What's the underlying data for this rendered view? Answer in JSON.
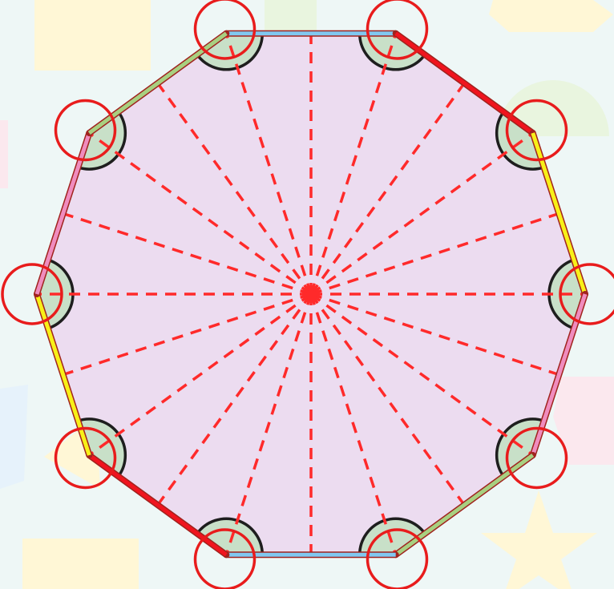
{
  "colors": {
    "background": "#eef7f6",
    "bg_shape_yellow": "#fff7d6",
    "bg_shape_pink": "#fbe8ee",
    "bg_shape_green": "#e9f5df",
    "bg_shape_blue": "#e6f2fb",
    "polygon_fill": "#ecdcf0",
    "polygon_outline": "#a0231e",
    "radius_line": "#ff2a2a",
    "vertex_circle": "#e81c1c",
    "inner_arc": "#1e1e1e",
    "inner_fill": "#c8e0c8"
  },
  "decagon": {
    "sides": 10,
    "edges": [
      {
        "color": "#80c8f0"
      },
      {
        "color": "#f0141e"
      },
      {
        "color": "#f8f018"
      },
      {
        "color": "#f08cbe"
      },
      {
        "color": "#a8d080"
      },
      {
        "color": "#80c8f0"
      },
      {
        "color": "#f0141e"
      },
      {
        "color": "#f8f018"
      },
      {
        "color": "#f08cbe"
      },
      {
        "color": "#a8d080"
      }
    ],
    "radial_lines": 20,
    "vertex_markers": 10
  }
}
